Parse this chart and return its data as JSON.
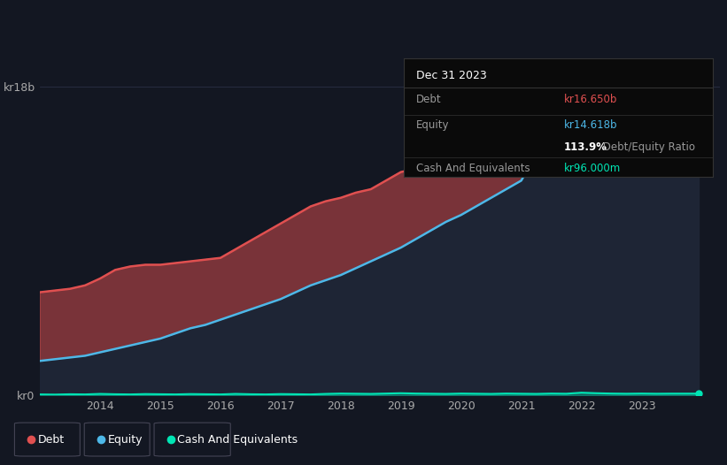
{
  "background_color": "#131722",
  "debt_color": "#e05050",
  "equity_color": "#4db8e8",
  "cash_color": "#00e5b4",
  "grid_color": "#2a2f45",
  "fill_below_color": "#1e2535",
  "tooltip": {
    "title": "Dec 31 2023",
    "debt_label": "Debt",
    "debt_value": "kr16.650b",
    "equity_label": "Equity",
    "equity_value": "kr14.618b",
    "ratio_value": "113.9%",
    "ratio_suffix": " Debt/Equity Ratio",
    "cash_label": "Cash And Equivalents",
    "cash_value": "kr96.000m"
  },
  "legend": [
    "Debt",
    "Equity",
    "Cash And Equivalents"
  ],
  "years": [
    2013.0,
    2013.25,
    2013.5,
    2013.75,
    2014.0,
    2014.25,
    2014.5,
    2014.75,
    2015.0,
    2015.25,
    2015.5,
    2015.75,
    2016.0,
    2016.25,
    2016.5,
    2016.75,
    2017.0,
    2017.25,
    2017.5,
    2017.75,
    2018.0,
    2018.25,
    2018.5,
    2018.75,
    2019.0,
    2019.25,
    2019.5,
    2019.75,
    2020.0,
    2020.25,
    2020.5,
    2020.75,
    2021.0,
    2021.25,
    2021.5,
    2021.75,
    2022.0,
    2022.25,
    2022.5,
    2022.75,
    2023.0,
    2023.25,
    2023.5,
    2023.75,
    2023.95
  ],
  "debt": [
    6.0,
    6.1,
    6.2,
    6.4,
    6.8,
    7.3,
    7.5,
    7.6,
    7.6,
    7.7,
    7.8,
    7.9,
    8.0,
    8.5,
    9.0,
    9.5,
    10.0,
    10.5,
    11.0,
    11.3,
    11.5,
    11.8,
    12.0,
    12.5,
    13.0,
    13.2,
    13.5,
    13.8,
    14.0,
    14.1,
    14.2,
    14.3,
    14.5,
    14.8,
    15.2,
    15.8,
    16.3,
    16.5,
    16.8,
    16.9,
    16.6,
    16.7,
    16.7,
    16.65,
    16.65
  ],
  "equity": [
    2.0,
    2.1,
    2.2,
    2.3,
    2.5,
    2.7,
    2.9,
    3.1,
    3.3,
    3.6,
    3.9,
    4.1,
    4.4,
    4.7,
    5.0,
    5.3,
    5.6,
    6.0,
    6.4,
    6.7,
    7.0,
    7.4,
    7.8,
    8.2,
    8.6,
    9.1,
    9.6,
    10.1,
    10.5,
    11.0,
    11.5,
    12.0,
    12.5,
    14.0,
    16.2,
    17.8,
    18.3,
    17.8,
    16.8,
    16.0,
    15.2,
    15.0,
    14.8,
    14.618,
    14.618
  ],
  "cash": [
    0.05,
    0.04,
    0.06,
    0.05,
    0.08,
    0.06,
    0.05,
    0.07,
    0.06,
    0.05,
    0.07,
    0.06,
    0.05,
    0.08,
    0.06,
    0.05,
    0.07,
    0.06,
    0.05,
    0.08,
    0.1,
    0.09,
    0.08,
    0.1,
    0.12,
    0.1,
    0.09,
    0.08,
    0.1,
    0.09,
    0.08,
    0.1,
    0.09,
    0.08,
    0.1,
    0.09,
    0.15,
    0.12,
    0.1,
    0.09,
    0.1,
    0.09,
    0.096,
    0.096,
    0.096
  ],
  "ylim": [
    0,
    19.5
  ],
  "yticks": [
    0,
    18
  ],
  "ytick_labels": [
    "kr0",
    "kr18b"
  ],
  "xticks": [
    2014,
    2015,
    2016,
    2017,
    2018,
    2019,
    2020,
    2021,
    2022,
    2023
  ],
  "xlim": [
    2013.0,
    2024.3
  ]
}
